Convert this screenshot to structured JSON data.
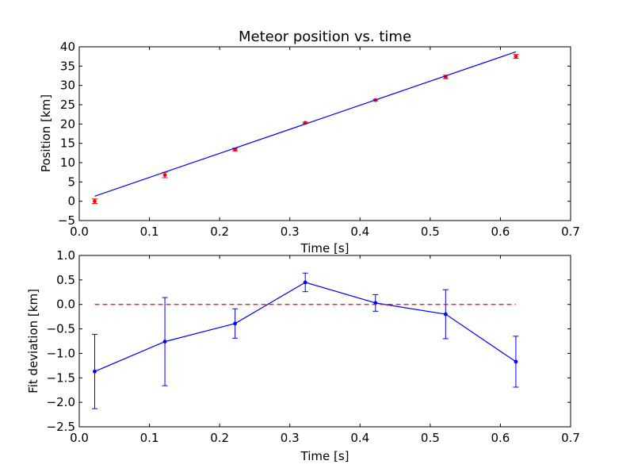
{
  "chart_data": [
    {
      "type": "scatter",
      "title": "Meteor position vs. time",
      "xlabel": "Time [s]",
      "ylabel": "Position [km]",
      "xlim": [
        0.0,
        0.7
      ],
      "ylim": [
        -5,
        40
      ],
      "xticks": [
        "0.0",
        "0.1",
        "0.2",
        "0.3",
        "0.4",
        "0.5",
        "0.6",
        "0.7"
      ],
      "yticks": [
        "−5",
        "0",
        "5",
        "10",
        "15",
        "20",
        "25",
        "30",
        "35",
        "40"
      ],
      "grid": false,
      "series": [
        {
          "kind": "errorbar-points",
          "color": "#ff0000",
          "x": [
            0.022,
            0.122,
            0.222,
            0.322,
            0.422,
            0.522,
            0.622
          ],
          "y": [
            0.0,
            6.8,
            13.4,
            20.3,
            26.2,
            32.2,
            37.5
          ],
          "yerr": [
            0.6,
            0.7,
            0.35,
            0.2,
            0.2,
            0.45,
            0.5
          ]
        },
        {
          "kind": "fit-line",
          "color": "#0000ff",
          "x": [
            0.022,
            0.622
          ],
          "y": [
            1.3,
            38.7
          ]
        }
      ]
    },
    {
      "type": "line",
      "title": "",
      "xlabel": "Time [s]",
      "ylabel": "Fit deviation [km]",
      "xlim": [
        0.0,
        0.7
      ],
      "ylim": [
        -2.5,
        1.0
      ],
      "xticks": [
        "0.0",
        "0.1",
        "0.2",
        "0.3",
        "0.4",
        "0.5",
        "0.6",
        "0.7"
      ],
      "yticks": [
        "−2.5",
        "−2.0",
        "−1.5",
        "−1.0",
        "−0.5",
        "0.0",
        "0.5",
        "1.0"
      ],
      "grid": false,
      "series": [
        {
          "kind": "errorbar-line",
          "color": "#0000ff",
          "x": [
            0.022,
            0.122,
            0.222,
            0.322,
            0.422,
            0.522,
            0.622
          ],
          "y": [
            -1.37,
            -0.76,
            -0.39,
            0.45,
            0.03,
            -0.2,
            -1.17
          ],
          "yerr": [
            0.76,
            0.9,
            0.3,
            0.19,
            0.17,
            0.5,
            0.52
          ]
        },
        {
          "kind": "zero-reference",
          "color": "#ff0000",
          "style": "dashed",
          "x": [
            0.022,
            0.622
          ],
          "y": [
            0.0,
            0.0
          ]
        }
      ]
    }
  ]
}
